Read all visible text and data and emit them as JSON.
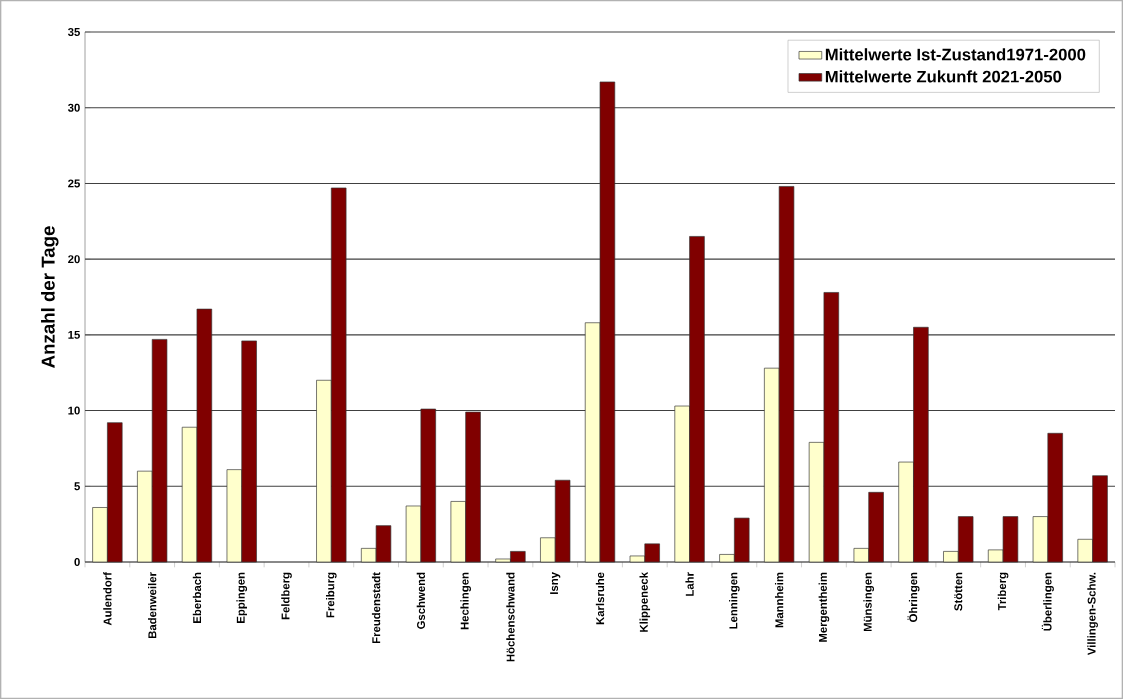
{
  "chart_data": {
    "type": "bar",
    "ylabel": "Anzahl der Tage",
    "categories": [
      "Aulendorf",
      "Badenweiler",
      "Eberbach",
      "Eppingen",
      "Feldberg",
      "Freiburg",
      "Freudenstadt",
      "Gschwend",
      "Hechingen",
      "Höchenschwand",
      "Isny",
      "Karlsruhe",
      "Klippeneck",
      "Lahr",
      "Lenningen",
      "Mannheim",
      "Mergentheim",
      "Münsingen",
      "Öhringen",
      "Stötten",
      "Triberg",
      "Überlingen",
      "Villingen-Schw."
    ],
    "series": [
      {
        "name": "Mittelwerte Ist-Zustand1971-2000",
        "color": "#ffffcc",
        "values": [
          3.6,
          6.0,
          8.9,
          6.1,
          null,
          12.0,
          0.9,
          3.7,
          4.0,
          0.2,
          1.6,
          15.8,
          0.4,
          10.3,
          0.5,
          12.8,
          7.9,
          0.9,
          6.6,
          0.7,
          0.8,
          3.0,
          1.5
        ]
      },
      {
        "name": "Mittelwerte Zukunft 2021-2050",
        "color": "#800000",
        "values": [
          9.2,
          14.7,
          16.7,
          14.6,
          null,
          24.7,
          2.4,
          10.1,
          9.9,
          0.7,
          5.4,
          31.7,
          1.2,
          21.5,
          2.9,
          24.8,
          17.8,
          4.6,
          15.5,
          3.0,
          3.0,
          8.5,
          5.7
        ]
      }
    ],
    "ylim": [
      0,
      35
    ],
    "yticks": [
      0,
      5,
      10,
      15,
      20,
      25,
      30,
      35
    ],
    "grid": "y",
    "legend": "top right"
  }
}
